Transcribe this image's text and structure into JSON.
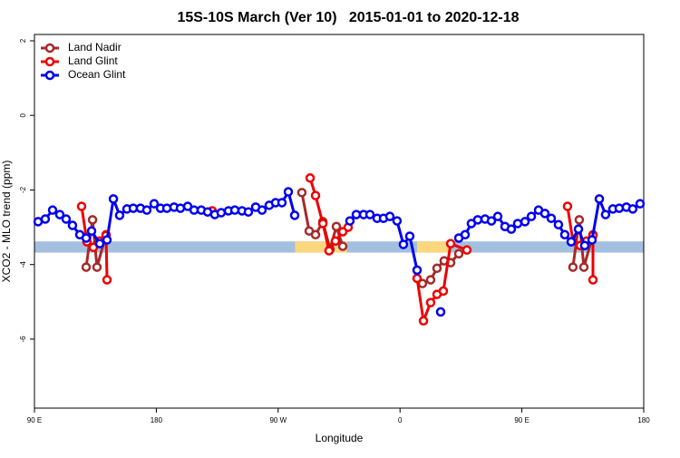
{
  "chart_data": {
    "type": "line",
    "title": "15S-10S March (Ver 10)   2015-01-01 to 2020-12-18",
    "xlabel": "Longitude",
    "ylabel": "XCO2 - MLO trend (ppm)",
    "xlim": [
      90,
      540
    ],
    "ylim": [
      -7.85,
      2.17
    ],
    "xticks": [
      {
        "value": 90,
        "label": "90 E"
      },
      180,
      {
        "value": 270,
        "label": "90 W"
      },
      {
        "value": 360,
        "label": "0"
      },
      {
        "value": 450,
        "label": "90 E"
      },
      {
        "value": 540,
        "label": "180"
      }
    ],
    "yticks": [
      -6,
      -4,
      -2,
      0,
      2
    ],
    "grid": false,
    "legend": "top-left",
    "surface_band": {
      "ylim": [
        -3.68,
        -3.38
      ],
      "ocean_color": "#a3bfe0",
      "land_color": "#fcd77f",
      "land_ranges": [
        [
          282.5,
          320.8
        ],
        [
          372.6,
          397.4
        ]
      ]
    },
    "series": [
      {
        "name": "Land Nadir",
        "color": "#a52a2a",
        "x": [
          128.2,
          132.9,
          136.2,
          142.9,
          null,
          287.5,
          292.9,
          297.6,
          303,
          308.3,
          313,
          317.7,
          null,
          376.6,
          382.6,
          387.3,
          392.6,
          397.4,
          403.4,
          null,
          487.7,
          492.4,
          495.8,
          502.5
        ],
        "values": [
          -4.07,
          -2.8,
          -4.07,
          -3.2,
          null,
          -2.07,
          -3.1,
          -3.2,
          -2.85,
          -3.59,
          -2.98,
          -3.51,
          null,
          -4.51,
          -4.41,
          -4.1,
          -3.9,
          -3.95,
          -3.71,
          null,
          -4.07,
          -2.8,
          -4.07,
          -3.2
        ]
      },
      {
        "name": "Land Glint",
        "color": "#ee0000",
        "x": [
          124.8,
          128.8,
          133.5,
          138.2,
          142.9,
          143.6,
          null,
          221.3,
          null,
          293.6,
          297.6,
          303,
          307.6,
          312.3,
          317.7,
          321.7,
          null,
          372.6,
          377.3,
          382.6,
          387.3,
          392,
          397.4,
          409.4,
          null,
          483.7,
          487.7,
          493.1,
          497.8,
          502.5,
          502.5
        ],
        "values": [
          -2.44,
          -3.39,
          -3.54,
          -3.37,
          -3.22,
          -4.41,
          null,
          -2.56,
          null,
          -1.68,
          -2.15,
          -2.9,
          -3.63,
          -3.37,
          -3.12,
          -3.0,
          null,
          -4.37,
          -5.51,
          -5.02,
          -4.8,
          -4.71,
          -3.44,
          -3.61,
          null,
          -2.44,
          -3.37,
          -3.49,
          -3.37,
          -3.22,
          -4.41
        ]
      },
      {
        "name": "Ocean Glint",
        "color": "#0000ee",
        "x": [
          92.7,
          98,
          103.4,
          108.7,
          113.4,
          118.1,
          123.5,
          128.2,
          132.2,
          138.2,
          143.6,
          148.3,
          152.9,
          158.3,
          163,
          168.3,
          173,
          178.4,
          183.1,
          187.8,
          193.1,
          197.8,
          203.2,
          207.9,
          213.2,
          217.9,
          223.2,
          227.9,
          233.3,
          238,
          243.3,
          248,
          253.4,
          258.1,
          263.4,
          268.1,
          272.8,
          277.5,
          282.2,
          null,
          323,
          327.7,
          333.1,
          337.8,
          343.1,
          347.8,
          352.5,
          357.8,
          362.5,
          367.2,
          372.6,
          null,
          390,
          null,
          403.4,
          408.1,
          412.7,
          417.4,
          422.8,
          427.5,
          432.2,
          437.5,
          442.2,
          446.9,
          452.3,
          457,
          462.3,
          467,
          471.7,
          477,
          481.7,
          486.4,
          491.8,
          496.4,
          501.8,
          507.2,
          511.8,
          517.2,
          521.9,
          527.2,
          531.9,
          537.3
        ],
        "values": [
          -2.85,
          -2.78,
          -2.54,
          -2.66,
          -2.78,
          -2.95,
          -3.2,
          -3.29,
          -3.1,
          -3.44,
          -3.34,
          -2.24,
          -2.68,
          -2.51,
          -2.49,
          -2.49,
          -2.54,
          -2.37,
          -2.49,
          -2.49,
          -2.46,
          -2.49,
          -2.44,
          -2.54,
          -2.54,
          -2.59,
          -2.66,
          -2.61,
          -2.56,
          -2.54,
          -2.56,
          -2.59,
          -2.46,
          -2.54,
          -2.41,
          -2.34,
          -2.34,
          -2.05,
          -2.68,
          null,
          -2.83,
          -2.66,
          -2.66,
          -2.66,
          -2.76,
          -2.76,
          -2.71,
          -2.83,
          -3.46,
          -3.24,
          -4.15,
          null,
          -5.27,
          null,
          -3.29,
          -3.2,
          -2.9,
          -2.8,
          -2.78,
          -2.83,
          -2.71,
          -2.98,
          -3.05,
          -2.9,
          -2.85,
          -2.71,
          -2.54,
          -2.63,
          -2.76,
          -2.93,
          -3.2,
          -3.39,
          -3.05,
          -3.49,
          -3.34,
          -2.24,
          -2.66,
          -2.51,
          -2.49,
          -2.46,
          -2.51,
          -2.37
        ]
      }
    ]
  }
}
